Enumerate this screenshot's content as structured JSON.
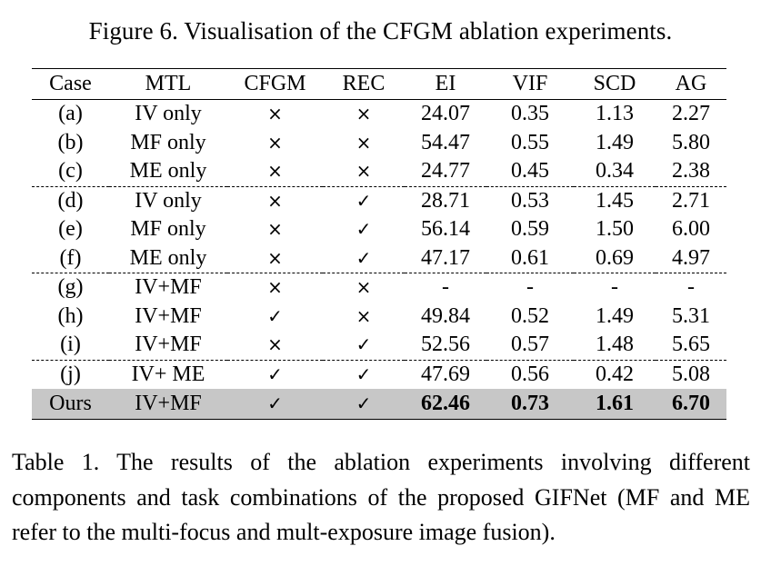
{
  "figure_caption": "Figure 6. Visualisation of the CFGM ablation experiments.",
  "table": {
    "headers": [
      "Case",
      "MTL",
      "CFGM",
      "REC",
      "EI",
      "VIF",
      "SCD",
      "AG"
    ],
    "rows": [
      [
        "(a)",
        "IV only",
        "×",
        "×",
        "24.07",
        "0.35",
        "1.13",
        "2.27"
      ],
      [
        "(b)",
        "MF only",
        "×",
        "×",
        "54.47",
        "0.55",
        "1.49",
        "5.80"
      ],
      [
        "(c)",
        "ME only",
        "×",
        "×",
        "24.77",
        "0.45",
        "0.34",
        "2.38"
      ],
      [
        "(d)",
        "IV only",
        "×",
        "✓",
        "28.71",
        "0.53",
        "1.45",
        "2.71"
      ],
      [
        "(e)",
        "MF only",
        "×",
        "✓",
        "56.14",
        "0.59",
        "1.50",
        "6.00"
      ],
      [
        "(f)",
        "ME only",
        "×",
        "✓",
        "47.17",
        "0.61",
        "0.69",
        "4.97"
      ],
      [
        "(g)",
        "IV+MF",
        "×",
        "×",
        "-",
        "-",
        "-",
        "-"
      ],
      [
        "(h)",
        "IV+MF",
        "✓",
        "×",
        "49.84",
        "0.52",
        "1.49",
        "5.31"
      ],
      [
        "(i)",
        "IV+MF",
        "×",
        "✓",
        "52.56",
        "0.57",
        "1.48",
        "5.65"
      ],
      [
        "(j)",
        "IV+ ME",
        "✓",
        "✓",
        "47.69",
        "0.56",
        "0.42",
        "5.08"
      ],
      [
        "Ours",
        "IV+MF",
        "✓",
        "✓",
        "62.46",
        "0.73",
        "1.61",
        "6.70"
      ]
    ],
    "highlight_color": "#c7c7c7"
  },
  "table_caption": "Table 1. The results of the ablation experiments involving different components and task combinations of the proposed GIFNet (MF and ME refer to the multi-focus and mult-exposure image fusion)."
}
